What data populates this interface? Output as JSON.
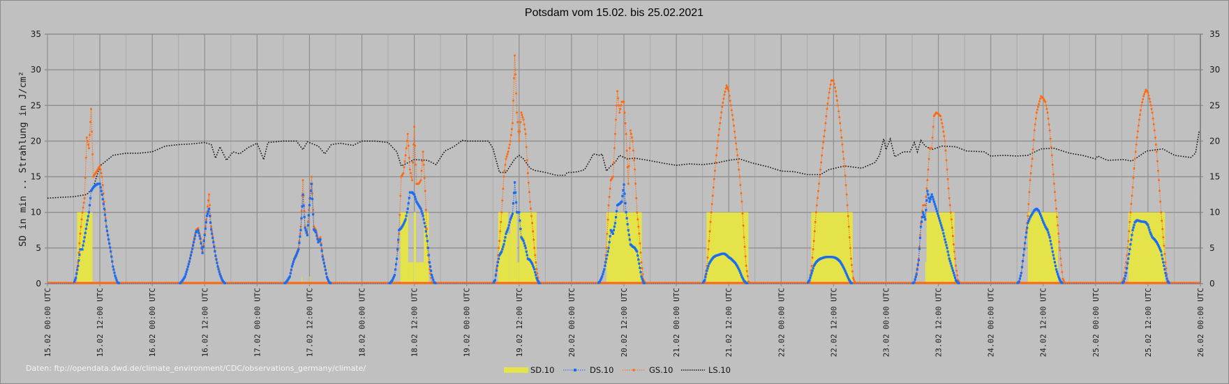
{
  "chart_data": {
    "type": "line",
    "title": "Potsdam vom 15.02. bis 25.02.2021",
    "ylabel": "SD in min .. Strahlung in J/cm²",
    "ylim": [
      0,
      35
    ],
    "yticks": [
      "0",
      "5",
      "10",
      "15",
      "20",
      "25",
      "30",
      "35"
    ],
    "xlim_hours": [
      0,
      264
    ],
    "xticks": [
      "15.02 00:00 UTC",
      "15.02 12:00 UTC",
      "16.02 00:00 UTC",
      "16.02 12:00 UTC",
      "17.02 00:00 UTC",
      "17.02 12:00 UTC",
      "18.02 00:00 UTC",
      "18.02 12:00 UTC",
      "19.02 00:00 UTC",
      "19.02 12:00 UTC",
      "20.02 00:00 UTC",
      "20.02 12:00 UTC",
      "21.02 00:00 UTC",
      "21.02 12:00 UTC",
      "22.02 00:00 UTC",
      "22.02 12:00 UTC",
      "23.02 00:00 UTC",
      "23.02 12:00 UTC",
      "24.02 00:00 UTC",
      "24.02 12:00 UTC",
      "25.02 00:00 UTC",
      "25.02 12:00 UTC",
      "26.02 00:00 UTC"
    ],
    "grid": true,
    "legend_position": "bottom-center",
    "source_note": "Daten: ftp://opendata.dwd.de/climate_environment/CDC/observations_germany/climate/",
    "colors": {
      "SD": "#e4e44a",
      "DS": "#1a6cf0",
      "GS": "#ff6a10",
      "LS": "#111111",
      "grid": "#8e8e8e",
      "grid_minor": "#a9a9a9"
    },
    "series": [
      {
        "name": "SD.10",
        "kind": "bar",
        "intervals_day_start_end_value": [
          [
            0,
            6.8,
            10.3,
            10
          ],
          [
            2,
            10.2,
            10.35,
            1
          ],
          [
            2,
            12.0,
            12.15,
            1
          ],
          [
            3,
            8.8,
            10.6,
            10
          ],
          [
            3,
            10.6,
            11.8,
            3
          ],
          [
            3,
            11.9,
            12.4,
            10
          ],
          [
            3,
            12.4,
            14.2,
            3
          ],
          [
            3,
            14.2,
            15.3,
            10
          ],
          [
            4,
            7.2,
            9.5,
            10
          ],
          [
            4,
            9.5,
            10.0,
            7
          ],
          [
            4,
            10.0,
            11.5,
            10
          ],
          [
            4,
            11.5,
            12.0,
            3
          ],
          [
            4,
            12.0,
            16.0,
            10
          ],
          [
            5,
            8.0,
            16.1,
            10
          ],
          [
            6,
            6.9,
            16.5,
            10
          ],
          [
            7,
            6.9,
            16.4,
            10
          ],
          [
            8,
            9.0,
            9.3,
            3
          ],
          [
            8,
            9.3,
            15.7,
            10
          ],
          [
            9,
            8.5,
            15.4,
            10
          ],
          [
            10,
            7.5,
            15.9,
            10
          ]
        ]
      },
      {
        "name": "DS.10",
        "kind": "line",
        "day_start_hour": 6,
        "step_hours": 0.5,
        "days": [
          [
            0,
            0.8,
            2.5,
            4.8,
            4.8,
            6.5,
            8.3,
            10,
            13,
            13.5,
            13.8,
            14,
            14,
            12.5,
            10.5,
            8,
            6.2,
            4.5,
            2.4,
            1.1,
            0.2,
            0,
            0
          ],
          [
            0,
            0.1,
            0.5,
            1,
            2,
            3.1,
            4.4,
            5.8,
            7.2,
            7.5,
            6.3,
            4.3,
            6.8,
            9.5,
            10.5,
            7.6,
            5.8,
            3.9,
            2.4,
            1.3,
            0.5,
            0.1,
            0
          ],
          [
            0,
            0.1,
            0.5,
            1,
            2.4,
            3.4,
            4,
            4.8,
            7.5,
            12.5,
            7.8,
            6.8,
            11,
            14,
            7.6,
            7.2,
            5.8,
            6.2,
            3.8,
            2.4,
            0.9,
            0.2,
            0
          ],
          [
            0,
            0.1,
            0.5,
            1.2,
            3.5,
            7.5,
            7.8,
            8.3,
            9,
            10.5,
            12.8,
            12.8,
            12.5,
            11.5,
            11,
            10.5,
            9.5,
            8,
            6,
            3,
            1.2,
            0.2,
            0
          ],
          [
            0,
            0.5,
            2.5,
            4,
            4.5,
            5.5,
            7,
            7.8,
            9,
            9.8,
            14.2,
            10,
            10,
            6.5,
            6,
            5,
            3.5,
            3.3,
            2.8,
            2,
            0.8,
            0.1,
            0
          ],
          [
            0,
            0.3,
            1,
            2,
            3.5,
            5,
            7.5,
            7,
            8.5,
            11,
            11.2,
            11.5,
            13.9,
            10,
            7.5,
            5.5,
            5.2,
            5,
            4.5,
            2.8,
            1,
            0.1,
            0
          ],
          [
            0,
            0.5,
            1.8,
            2.8,
            3.3,
            3.7,
            3.9,
            4,
            4.1,
            4.2,
            4.2,
            4,
            3.7,
            3.5,
            3.2,
            2.9,
            2.4,
            1.8,
            1,
            0.4,
            0.1,
            0,
            0
          ],
          [
            0,
            0.5,
            1.5,
            2.5,
            3,
            3.3,
            3.5,
            3.6,
            3.7,
            3.75,
            3.75,
            3.75,
            3.7,
            3.6,
            3.4,
            3.1,
            2.6,
            2,
            1.3,
            0.6,
            0.1,
            0,
            0
          ],
          [
            0,
            0.2,
            1.3,
            3.3,
            8,
            10,
            9,
            13,
            11.5,
            12.5,
            11.5,
            10.5,
            9.5,
            8.5,
            7.5,
            6.2,
            5,
            3.5,
            2.5,
            1.5,
            0.5,
            0.1,
            0
          ],
          [
            0,
            0.3,
            1.5,
            4,
            6.5,
            8.5,
            9.3,
            9.8,
            10.3,
            10.5,
            10.2,
            9.5,
            8.7,
            8,
            7.5,
            6.5,
            5,
            3.5,
            2,
            1,
            0.3,
            0,
            0
          ],
          [
            0,
            0.3,
            1.5,
            3.5,
            5.5,
            7.5,
            8.6,
            8.9,
            8.8,
            8.7,
            8.7,
            8.6,
            8.2,
            7.2,
            6.5,
            6.2,
            5.8,
            5.2,
            4.5,
            3,
            1.5,
            0.3,
            0
          ]
        ]
      },
      {
        "name": "GS.10",
        "kind": "line",
        "day_start_hour": 6,
        "step_hours": 0.5,
        "days": [
          [
            0,
            0.8,
            3,
            7,
            10,
            12,
            20.5,
            19,
            24.5,
            15,
            15.5,
            16,
            16.5,
            15,
            11.5,
            8,
            6.2,
            4.5,
            2.4,
            1.1,
            0.2,
            0,
            0
          ],
          [
            0,
            0.1,
            0.5,
            1,
            2,
            3.2,
            4.5,
            6,
            7.5,
            7.8,
            6.5,
            4.5,
            7,
            10,
            12.5,
            8,
            6,
            4,
            2.5,
            1.4,
            0.6,
            0.1,
            0
          ],
          [
            0,
            0.1,
            0.5,
            1,
            2.5,
            3.5,
            4.2,
            5,
            8,
            14.5,
            8,
            7,
            12,
            15,
            8,
            7.5,
            6,
            6.5,
            4,
            2.5,
            1,
            0.2,
            0
          ],
          [
            0,
            0.1,
            0.5,
            1.2,
            3.5,
            7,
            15,
            15.5,
            18,
            21,
            16,
            14.5,
            22,
            14,
            14,
            14.5,
            18.5,
            13,
            5,
            2,
            0.2,
            0,
            0
          ],
          [
            0,
            0.5,
            3,
            6,
            10,
            15,
            17.5,
            18.5,
            20,
            22.5,
            32,
            24,
            20,
            24,
            23,
            21,
            15.5,
            11.5,
            8.5,
            5,
            2,
            0.3,
            0
          ],
          [
            0,
            0.3,
            1,
            2,
            5,
            11,
            14.5,
            15,
            21,
            27,
            24,
            25.5,
            25.5,
            21,
            14,
            21.5,
            20,
            16,
            10,
            7,
            3,
            0.5,
            0
          ],
          [
            0,
            0.5,
            2.5,
            6,
            10,
            13.5,
            17,
            20,
            22.5,
            24.8,
            26.5,
            27.8,
            27,
            25,
            23,
            20.5,
            18,
            15,
            11.5,
            6.5,
            2.5,
            0.3,
            0
          ],
          [
            0,
            0.5,
            2.5,
            6,
            10,
            13,
            16,
            19,
            21.5,
            24.5,
            26.8,
            28.5,
            28.5,
            27,
            25,
            22.5,
            19.5,
            16.5,
            12.5,
            8,
            3.5,
            0.8,
            0
          ],
          [
            0,
            0.2,
            1.5,
            3.5,
            8.5,
            11,
            11,
            14.5,
            19,
            19,
            23.5,
            24,
            23.8,
            23.5,
            22,
            20,
            16,
            12,
            9,
            5.5,
            2.5,
            0.5,
            0
          ],
          [
            0,
            0.3,
            1.5,
            4,
            6.5,
            9.5,
            14.5,
            17.5,
            21.5,
            24,
            25.2,
            26.3,
            26,
            25.5,
            24,
            21.5,
            18,
            14,
            10.5,
            7,
            3.5,
            0.7,
            0
          ],
          [
            0,
            0.8,
            3,
            6,
            10,
            13.5,
            17.5,
            20.5,
            23,
            25,
            26.3,
            27.2,
            26.8,
            25.5,
            24,
            21.5,
            18.5,
            14.5,
            10,
            6.5,
            3,
            0.5,
            0
          ]
        ]
      },
      {
        "name": "LS.10",
        "kind": "line",
        "points_hour_value": [
          [
            0,
            12
          ],
          [
            3,
            12.1
          ],
          [
            6,
            12.2
          ],
          [
            9,
            12.5
          ],
          [
            10.5,
            13.5
          ],
          [
            12,
            16.5
          ],
          [
            15,
            18
          ],
          [
            18,
            18.3
          ],
          [
            21,
            18.3
          ],
          [
            24,
            18.5
          ],
          [
            27,
            19.3
          ],
          [
            30,
            19.5
          ],
          [
            33,
            19.6
          ],
          [
            36,
            19.8
          ],
          [
            37.5,
            19.5
          ],
          [
            38.5,
            17.6
          ],
          [
            39.5,
            19.2
          ],
          [
            41,
            17.3
          ],
          [
            42.5,
            18.5
          ],
          [
            44,
            18.2
          ],
          [
            46,
            19.1
          ],
          [
            48,
            19.7
          ],
          [
            49.5,
            17.4
          ],
          [
            50.5,
            19.8
          ],
          [
            54,
            20
          ],
          [
            57,
            20
          ],
          [
            58.5,
            18.8
          ],
          [
            59.5,
            19.9
          ],
          [
            62,
            19.3
          ],
          [
            63.5,
            18.2
          ],
          [
            65,
            19.5
          ],
          [
            67,
            19.7
          ],
          [
            70,
            19.4
          ],
          [
            72,
            20
          ],
          [
            75,
            20
          ],
          [
            78,
            19.8
          ],
          [
            80,
            18.5
          ],
          [
            81,
            16.5
          ],
          [
            84,
            17.4
          ],
          [
            87,
            17.3
          ],
          [
            89,
            16.7
          ],
          [
            91,
            18.6
          ],
          [
            93,
            19.2
          ],
          [
            95,
            20.1
          ],
          [
            96,
            20
          ],
          [
            99,
            20
          ],
          [
            101,
            20
          ],
          [
            102,
            19
          ],
          [
            103.5,
            15.6
          ],
          [
            105,
            15.6
          ],
          [
            107,
            17.5
          ],
          [
            108,
            18
          ],
          [
            109,
            17.5
          ],
          [
            110.5,
            16.2
          ],
          [
            111.5,
            15.9
          ],
          [
            114,
            15.6
          ],
          [
            116.5,
            15.2
          ],
          [
            118.5,
            15.2
          ],
          [
            119,
            15.6
          ],
          [
            120,
            15.6
          ],
          [
            121.5,
            15.7
          ],
          [
            123,
            16
          ],
          [
            124.5,
            17.6
          ],
          [
            125,
            18.2
          ],
          [
            126.5,
            18
          ],
          [
            127,
            18.2
          ],
          [
            128,
            15.8
          ],
          [
            129,
            16.5
          ],
          [
            130,
            17
          ],
          [
            131,
            18
          ],
          [
            132.8,
            17.5
          ],
          [
            134.5,
            17.6
          ],
          [
            137.5,
            17.3
          ],
          [
            141,
            16.9
          ],
          [
            144,
            16.6
          ],
          [
            147,
            16.8
          ],
          [
            150,
            16.7
          ],
          [
            153,
            16.9
          ],
          [
            156,
            17.3
          ],
          [
            158.5,
            17.5
          ],
          [
            161.5,
            16.9
          ],
          [
            165,
            16.4
          ],
          [
            168,
            15.8
          ],
          [
            171,
            15.7
          ],
          [
            174,
            15.3
          ],
          [
            177,
            15.3
          ],
          [
            179,
            16
          ],
          [
            182.5,
            16.5
          ],
          [
            186.5,
            16.2
          ],
          [
            189.5,
            17
          ],
          [
            190.5,
            18
          ],
          [
            191.5,
            20.3
          ],
          [
            192,
            18.8
          ],
          [
            193,
            20.3
          ],
          [
            194,
            17.8
          ],
          [
            196,
            18.5
          ],
          [
            197.5,
            18.5
          ],
          [
            198.5,
            19.8
          ],
          [
            199.2,
            18.5
          ],
          [
            200,
            20.1
          ],
          [
            201,
            19.3
          ],
          [
            202.5,
            18.8
          ],
          [
            204.8,
            19.3
          ],
          [
            208,
            19.2
          ],
          [
            210.5,
            18.6
          ],
          [
            214.5,
            18.5
          ],
          [
            216,
            17.9
          ],
          [
            219,
            18
          ],
          [
            222,
            17.9
          ],
          [
            224.5,
            18
          ],
          [
            227.5,
            18.9
          ],
          [
            230.5,
            19
          ],
          [
            234,
            18.3
          ],
          [
            237,
            18
          ],
          [
            240,
            17.5
          ],
          [
            240.5,
            17.9
          ],
          [
            242.7,
            17.3
          ],
          [
            246.4,
            17.4
          ],
          [
            248.3,
            17.2
          ],
          [
            251.7,
            18.6
          ],
          [
            255.4,
            18.9
          ],
          [
            258.1,
            18
          ],
          [
            261.8,
            17.7
          ],
          [
            262.9,
            18.3
          ],
          [
            263.7,
            21.3
          ],
          [
            264,
            21.5
          ]
        ]
      }
    ]
  }
}
